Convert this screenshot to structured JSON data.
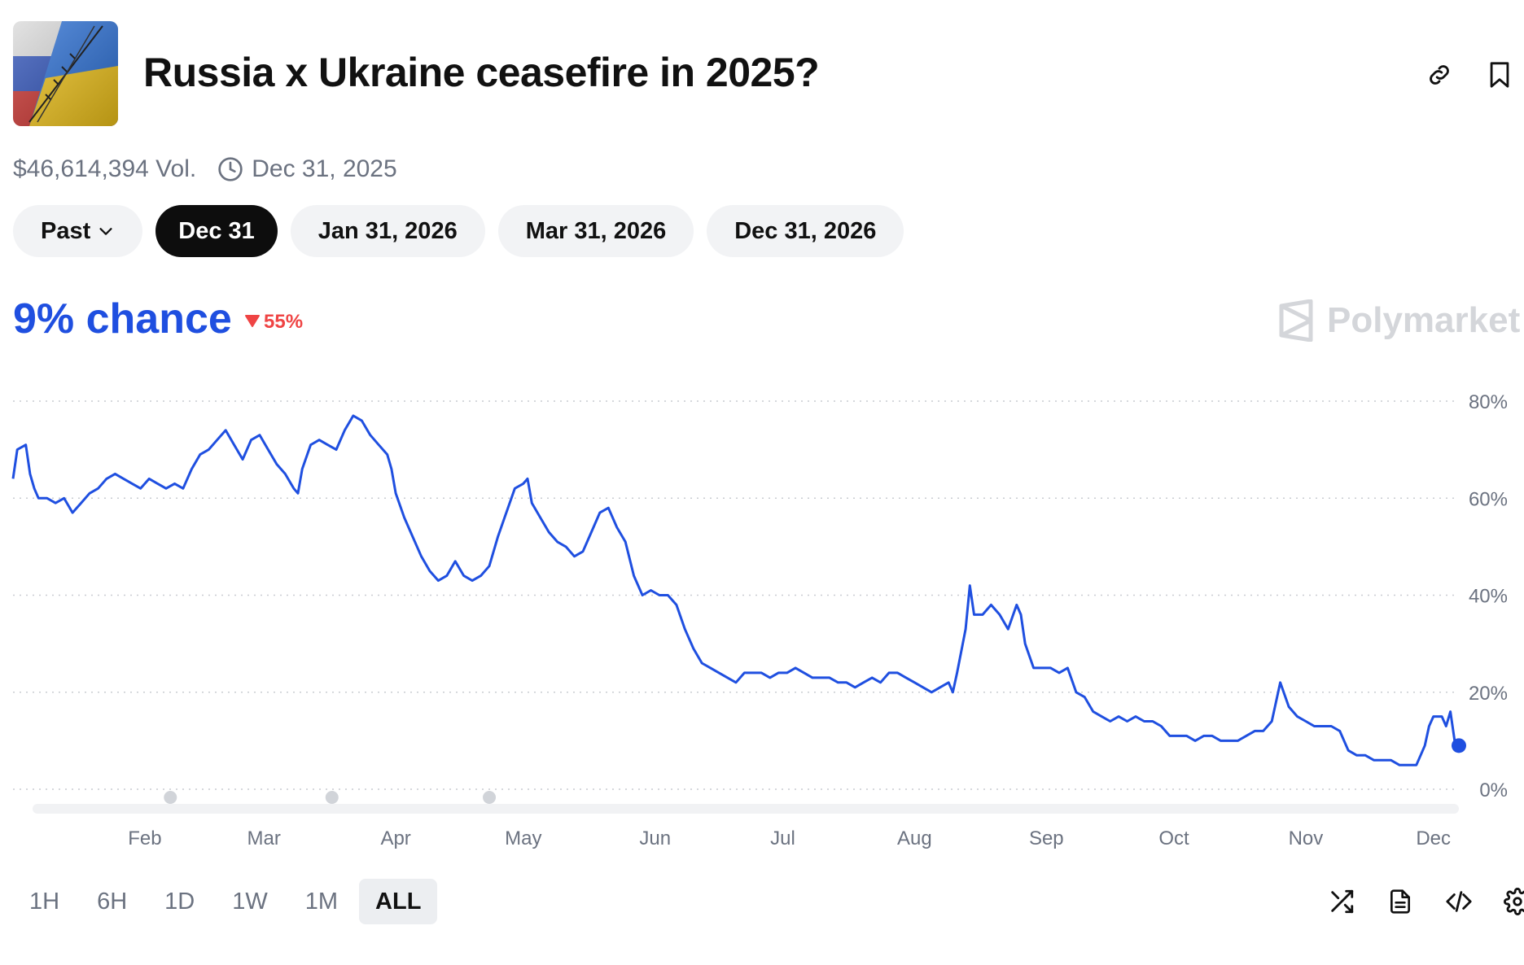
{
  "header": {
    "title": "Russia x Ukraine ceasefire in 2025?",
    "thumbnail_icon": "flag-thumbnail",
    "link_icon": "link-icon",
    "bookmark_icon": "bookmark-icon"
  },
  "meta": {
    "volume": "$46,614,394 Vol.",
    "end_date": "Dec 31, 2025",
    "clock_icon": "clock-icon"
  },
  "tabs": [
    {
      "label": "Past",
      "active": false,
      "dropdown": true
    },
    {
      "label": "Dec 31",
      "active": true
    },
    {
      "label": "Jan 31, 2026",
      "active": false
    },
    {
      "label": "Mar 31, 2026",
      "active": false
    },
    {
      "label": "Dec 31, 2026",
      "active": false
    }
  ],
  "summary": {
    "chance": "9% chance",
    "change": "55%",
    "change_direction": "down",
    "accent_color": "#1f4fe0",
    "down_color": "#ef4444"
  },
  "brand": {
    "name": "Polymarket"
  },
  "range_buttons": [
    {
      "label": "1H",
      "active": false
    },
    {
      "label": "6H",
      "active": false
    },
    {
      "label": "1D",
      "active": false
    },
    {
      "label": "1W",
      "active": false
    },
    {
      "label": "1M",
      "active": false
    },
    {
      "label": "ALL",
      "active": true
    }
  ],
  "tools": [
    "shuffle-icon",
    "document-icon",
    "code-icon",
    "gear-icon"
  ],
  "chart_data": {
    "type": "line",
    "title": "",
    "xlabel": "",
    "ylabel": "",
    "ylim": [
      0,
      80
    ],
    "y_ticks": [
      "0%",
      "20%",
      "40%",
      "60%",
      "80%"
    ],
    "y_tick_values": [
      0,
      20,
      40,
      60,
      80
    ],
    "x_ticks": [
      "Feb",
      "Mar",
      "Apr",
      "May",
      "Jun",
      "Jul",
      "Aug",
      "Sep",
      "Oct",
      "Nov",
      "Dec"
    ],
    "x_tick_days": [
      31,
      59,
      90,
      120,
      151,
      181,
      212,
      243,
      273,
      304,
      334
    ],
    "x_domain_days": [
      0,
      340
    ],
    "grid": true,
    "line_color": "#1f4fe0",
    "series": [
      {
        "values": [
          [
            0,
            64
          ],
          [
            1,
            70
          ],
          [
            3,
            71
          ],
          [
            4,
            65
          ],
          [
            5,
            62
          ],
          [
            6,
            60
          ],
          [
            8,
            60
          ],
          [
            10,
            59
          ],
          [
            12,
            60
          ],
          [
            14,
            57
          ],
          [
            16,
            59
          ],
          [
            18,
            61
          ],
          [
            20,
            62
          ],
          [
            22,
            64
          ],
          [
            24,
            65
          ],
          [
            26,
            64
          ],
          [
            28,
            63
          ],
          [
            30,
            62
          ],
          [
            32,
            64
          ],
          [
            34,
            63
          ],
          [
            36,
            62
          ],
          [
            38,
            63
          ],
          [
            40,
            62
          ],
          [
            42,
            66
          ],
          [
            44,
            69
          ],
          [
            46,
            70
          ],
          [
            48,
            72
          ],
          [
            50,
            74
          ],
          [
            52,
            71
          ],
          [
            54,
            68
          ],
          [
            56,
            72
          ],
          [
            58,
            73
          ],
          [
            60,
            70
          ],
          [
            62,
            67
          ],
          [
            64,
            65
          ],
          [
            66,
            62
          ],
          [
            67,
            61
          ],
          [
            68,
            66
          ],
          [
            70,
            71
          ],
          [
            72,
            72
          ],
          [
            74,
            71
          ],
          [
            76,
            70
          ],
          [
            78,
            74
          ],
          [
            80,
            77
          ],
          [
            82,
            76
          ],
          [
            84,
            73
          ],
          [
            86,
            71
          ],
          [
            88,
            69
          ],
          [
            89,
            66
          ],
          [
            90,
            61
          ],
          [
            92,
            56
          ],
          [
            94,
            52
          ],
          [
            96,
            48
          ],
          [
            98,
            45
          ],
          [
            100,
            43
          ],
          [
            102,
            44
          ],
          [
            104,
            47
          ],
          [
            106,
            44
          ],
          [
            108,
            43
          ],
          [
            110,
            44
          ],
          [
            112,
            46
          ],
          [
            114,
            52
          ],
          [
            116,
            57
          ],
          [
            118,
            62
          ],
          [
            120,
            63
          ],
          [
            121,
            64
          ],
          [
            122,
            59
          ],
          [
            124,
            56
          ],
          [
            126,
            53
          ],
          [
            128,
            51
          ],
          [
            130,
            50
          ],
          [
            132,
            48
          ],
          [
            134,
            49
          ],
          [
            136,
            53
          ],
          [
            138,
            57
          ],
          [
            140,
            58
          ],
          [
            142,
            54
          ],
          [
            144,
            51
          ],
          [
            146,
            44
          ],
          [
            148,
            40
          ],
          [
            150,
            41
          ],
          [
            152,
            40
          ],
          [
            154,
            40
          ],
          [
            156,
            38
          ],
          [
            158,
            33
          ],
          [
            160,
            29
          ],
          [
            162,
            26
          ],
          [
            164,
            25
          ],
          [
            166,
            24
          ],
          [
            168,
            23
          ],
          [
            170,
            22
          ],
          [
            172,
            24
          ],
          [
            174,
            24
          ],
          [
            176,
            24
          ],
          [
            178,
            23
          ],
          [
            180,
            24
          ],
          [
            182,
            24
          ],
          [
            184,
            25
          ],
          [
            186,
            24
          ],
          [
            188,
            23
          ],
          [
            190,
            23
          ],
          [
            192,
            23
          ],
          [
            194,
            22
          ],
          [
            196,
            22
          ],
          [
            198,
            21
          ],
          [
            200,
            22
          ],
          [
            202,
            23
          ],
          [
            204,
            22
          ],
          [
            206,
            24
          ],
          [
            208,
            24
          ],
          [
            210,
            23
          ],
          [
            212,
            22
          ],
          [
            214,
            21
          ],
          [
            216,
            20
          ],
          [
            218,
            21
          ],
          [
            220,
            22
          ],
          [
            221,
            20
          ],
          [
            222,
            24
          ],
          [
            224,
            33
          ],
          [
            225,
            42
          ],
          [
            226,
            36
          ],
          [
            228,
            36
          ],
          [
            230,
            38
          ],
          [
            232,
            36
          ],
          [
            234,
            33
          ],
          [
            236,
            38
          ],
          [
            237,
            36
          ],
          [
            238,
            30
          ],
          [
            240,
            25
          ],
          [
            242,
            25
          ],
          [
            244,
            25
          ],
          [
            246,
            24
          ],
          [
            248,
            25
          ],
          [
            250,
            20
          ],
          [
            252,
            19
          ],
          [
            254,
            16
          ],
          [
            256,
            15
          ],
          [
            258,
            14
          ],
          [
            260,
            15
          ],
          [
            262,
            14
          ],
          [
            264,
            15
          ],
          [
            266,
            14
          ],
          [
            268,
            14
          ],
          [
            270,
            13
          ],
          [
            272,
            11
          ],
          [
            274,
            11
          ],
          [
            276,
            11
          ],
          [
            278,
            10
          ],
          [
            280,
            11
          ],
          [
            282,
            11
          ],
          [
            284,
            10
          ],
          [
            286,
            10
          ],
          [
            288,
            10
          ],
          [
            290,
            11
          ],
          [
            292,
            12
          ],
          [
            294,
            12
          ],
          [
            296,
            14
          ],
          [
            297,
            18
          ],
          [
            298,
            22
          ],
          [
            300,
            17
          ],
          [
            302,
            15
          ],
          [
            304,
            14
          ],
          [
            306,
            13
          ],
          [
            308,
            13
          ],
          [
            310,
            13
          ],
          [
            312,
            12
          ],
          [
            314,
            8
          ],
          [
            316,
            7
          ],
          [
            318,
            7
          ],
          [
            320,
            6
          ],
          [
            322,
            6
          ],
          [
            324,
            6
          ],
          [
            326,
            5
          ],
          [
            328,
            5
          ],
          [
            330,
            5
          ],
          [
            331,
            7
          ],
          [
            332,
            9
          ],
          [
            333,
            13
          ],
          [
            334,
            15
          ],
          [
            336,
            15
          ],
          [
            337,
            13
          ],
          [
            338,
            16
          ],
          [
            339,
            10
          ],
          [
            340,
            9
          ]
        ]
      }
    ],
    "end_marker_value": 9,
    "bottom_markers_days": [
      37,
      75,
      112
    ]
  }
}
